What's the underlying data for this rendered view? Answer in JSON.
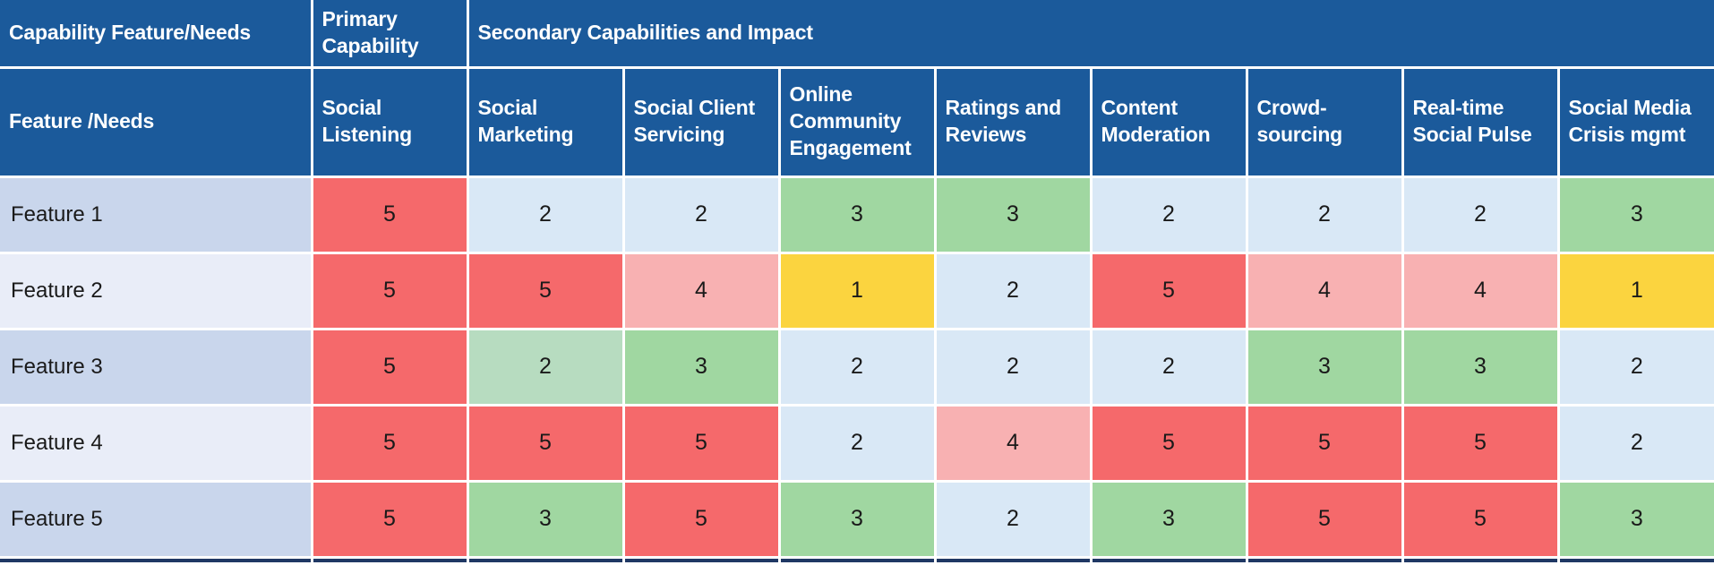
{
  "palette": {
    "header_bg": "#1B5A9B",
    "header_text": "#FFFFFF",
    "value_text": "#1A1A1A",
    "label_odd_bg": "#C9D6EC",
    "label_even_bg": "#E9EDF8",
    "bottom_strip": "#1F3864",
    "colors": {
      "red": "#F5696B",
      "pink": "#F8B1B2",
      "yellow": "#FBD43F",
      "blue": "#D9E8F6",
      "green": "#A0D7A1",
      "lightgreen": "#B7DCC0"
    }
  },
  "header": {
    "row1_col1": "Capability Feature/Needs",
    "row1_col2": "Primary Capability",
    "row1_col3": "Secondary Capabilities and Impact",
    "row2_label": "Feature /Needs",
    "columns": [
      "Social Listening",
      "Social Marketing",
      "Social Client Servicing",
      "Online Community Engagement",
      "Ratings and Reviews",
      "Content Moderation",
      "Crowd-sourcing",
      "Real-time Social Pulse",
      "Social Media Crisis mgmt"
    ]
  },
  "rows": [
    {
      "label": "Feature 1",
      "cells": [
        {
          "v": 5,
          "c": "red"
        },
        {
          "v": 2,
          "c": "blue"
        },
        {
          "v": 2,
          "c": "blue"
        },
        {
          "v": 3,
          "c": "green"
        },
        {
          "v": 3,
          "c": "green"
        },
        {
          "v": 2,
          "c": "blue"
        },
        {
          "v": 2,
          "c": "blue"
        },
        {
          "v": 2,
          "c": "blue"
        },
        {
          "v": 3,
          "c": "green"
        }
      ]
    },
    {
      "label": "Feature 2",
      "cells": [
        {
          "v": 5,
          "c": "red"
        },
        {
          "v": 5,
          "c": "red"
        },
        {
          "v": 4,
          "c": "pink"
        },
        {
          "v": 1,
          "c": "yellow"
        },
        {
          "v": 2,
          "c": "blue"
        },
        {
          "v": 5,
          "c": "red"
        },
        {
          "v": 4,
          "c": "pink"
        },
        {
          "v": 4,
          "c": "pink"
        },
        {
          "v": 1,
          "c": "yellow"
        }
      ]
    },
    {
      "label": "Feature 3",
      "cells": [
        {
          "v": 5,
          "c": "red"
        },
        {
          "v": 2,
          "c": "lightgreen"
        },
        {
          "v": 3,
          "c": "green"
        },
        {
          "v": 2,
          "c": "blue"
        },
        {
          "v": 2,
          "c": "blue"
        },
        {
          "v": 2,
          "c": "blue"
        },
        {
          "v": 3,
          "c": "green"
        },
        {
          "v": 3,
          "c": "green"
        },
        {
          "v": 2,
          "c": "blue"
        }
      ]
    },
    {
      "label": "Feature 4",
      "cells": [
        {
          "v": 5,
          "c": "red"
        },
        {
          "v": 5,
          "c": "red"
        },
        {
          "v": 5,
          "c": "red"
        },
        {
          "v": 2,
          "c": "blue"
        },
        {
          "v": 4,
          "c": "pink"
        },
        {
          "v": 5,
          "c": "red"
        },
        {
          "v": 5,
          "c": "red"
        },
        {
          "v": 5,
          "c": "red"
        },
        {
          "v": 2,
          "c": "blue"
        }
      ]
    },
    {
      "label": "Feature 5",
      "cells": [
        {
          "v": 5,
          "c": "red"
        },
        {
          "v": 3,
          "c": "green"
        },
        {
          "v": 5,
          "c": "red"
        },
        {
          "v": 3,
          "c": "green"
        },
        {
          "v": 2,
          "c": "blue"
        },
        {
          "v": 3,
          "c": "green"
        },
        {
          "v": 5,
          "c": "red"
        },
        {
          "v": 5,
          "c": "red"
        },
        {
          "v": 3,
          "c": "green"
        }
      ]
    }
  ],
  "chart_data": {
    "type": "heatmap",
    "title": "Secondary Capabilities and Impact",
    "row_header": "Feature /Needs",
    "group_headers": [
      "Capability Feature/Needs",
      "Primary Capability",
      "Secondary Capabilities and Impact"
    ],
    "primary_capability_column": "Social Listening",
    "columns": [
      "Social Listening",
      "Social Marketing",
      "Social Client Servicing",
      "Online Community Engagement",
      "Ratings and Reviews",
      "Content Moderation",
      "Crowd-sourcing",
      "Real-time Social Pulse",
      "Social Media Crisis mgmt"
    ],
    "rows": [
      "Feature 1",
      "Feature 2",
      "Feature 3",
      "Feature 4",
      "Feature 5"
    ],
    "values": [
      [
        5,
        2,
        2,
        3,
        3,
        2,
        2,
        2,
        3
      ],
      [
        5,
        5,
        4,
        1,
        2,
        5,
        4,
        4,
        1
      ],
      [
        5,
        2,
        3,
        2,
        2,
        2,
        3,
        3,
        2
      ],
      [
        5,
        5,
        5,
        2,
        4,
        5,
        5,
        5,
        2
      ],
      [
        5,
        3,
        5,
        3,
        2,
        3,
        5,
        5,
        3
      ]
    ],
    "cell_colors": [
      [
        "red",
        "blue",
        "blue",
        "green",
        "green",
        "blue",
        "blue",
        "blue",
        "green"
      ],
      [
        "red",
        "red",
        "pink",
        "yellow",
        "blue",
        "red",
        "pink",
        "pink",
        "yellow"
      ],
      [
        "red",
        "lightgreen",
        "green",
        "blue",
        "blue",
        "blue",
        "green",
        "green",
        "blue"
      ],
      [
        "red",
        "red",
        "red",
        "blue",
        "pink",
        "red",
        "red",
        "red",
        "blue"
      ],
      [
        "red",
        "green",
        "red",
        "green",
        "blue",
        "green",
        "red",
        "red",
        "green"
      ]
    ],
    "value_range": [
      1,
      5
    ],
    "legend_position": "none",
    "grid": true
  }
}
